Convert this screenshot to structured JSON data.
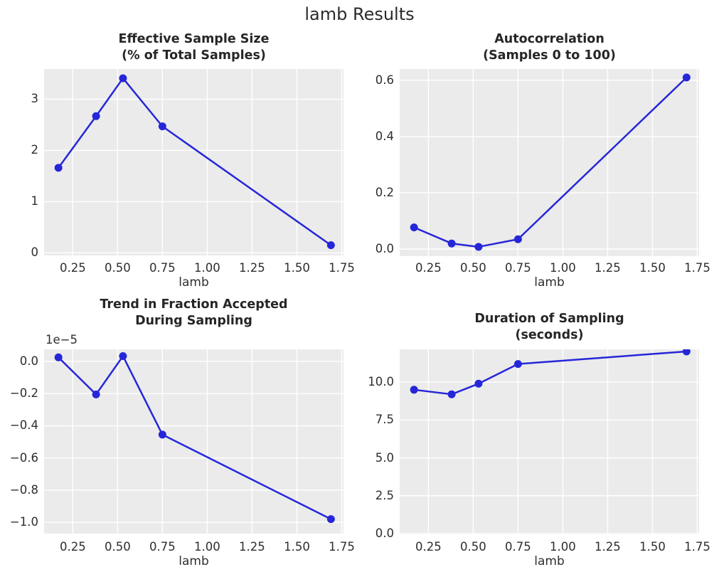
{
  "suptitle": "lamb Results",
  "colors": {
    "line": "#2626d9",
    "marker": "#2626d9",
    "plot_background": "#ebebeb",
    "grid": "#ffffff",
    "tick_text": "#2e2e2e",
    "title_text": "#262626"
  },
  "chart_data": [
    {
      "id": "ess",
      "type": "line",
      "title_lines": [
        "Effective Sample Size",
        "(% of Total Samples)"
      ],
      "xlabel": "lamb",
      "x": [
        0.17,
        0.38,
        0.53,
        0.75,
        1.69
      ],
      "y": [
        1.66,
        2.67,
        3.41,
        2.47,
        0.15
      ],
      "xlim": [
        0.09,
        1.76
      ],
      "ylim": [
        -0.05,
        3.59
      ],
      "xticks": {
        "values": [
          0.25,
          0.5,
          0.75,
          1.0,
          1.25,
          1.5,
          1.75
        ],
        "labels": [
          "0.25",
          "0.50",
          "0.75",
          "1.00",
          "1.25",
          "1.50",
          "1.75"
        ]
      },
      "yticks": {
        "values": [
          0,
          1,
          2,
          3
        ],
        "labels": [
          "0",
          "1",
          "2",
          "3"
        ]
      },
      "grid": true,
      "legend": null
    },
    {
      "id": "autocorrelation",
      "type": "line",
      "title_lines": [
        "Autocorrelation",
        "(Samples 0 to 100)"
      ],
      "xlabel": "lamb",
      "x": [
        0.17,
        0.38,
        0.53,
        0.75,
        1.69
      ],
      "y": [
        0.077,
        0.02,
        0.008,
        0.035,
        0.61
      ],
      "xlim": [
        0.09,
        1.76
      ],
      "ylim": [
        -0.025,
        0.64
      ],
      "xticks": {
        "values": [
          0.25,
          0.5,
          0.75,
          1.0,
          1.25,
          1.5,
          1.75
        ],
        "labels": [
          "0.25",
          "0.50",
          "0.75",
          "1.00",
          "1.25",
          "1.50",
          "1.75"
        ]
      },
      "yticks": {
        "values": [
          0,
          0.2,
          0.4,
          0.6
        ],
        "labels": [
          "0.0",
          "0.2",
          "0.4",
          "0.6"
        ]
      },
      "grid": true,
      "legend": null
    },
    {
      "id": "trend",
      "type": "line",
      "title_lines": [
        "Trend in Fraction Accepted",
        "During Sampling"
      ],
      "xlabel": "lamb",
      "offset_text": "1e−5",
      "y_units_note": "y values shown in units of 1e-5",
      "x": [
        0.17,
        0.38,
        0.53,
        0.75,
        1.69
      ],
      "y": [
        0.025,
        -0.205,
        0.033,
        -0.455,
        -0.98
      ],
      "xlim": [
        0.09,
        1.76
      ],
      "ylim": [
        -1.07,
        0.075
      ],
      "xticks": {
        "values": [
          0.25,
          0.5,
          0.75,
          1.0,
          1.25,
          1.5,
          1.75
        ],
        "labels": [
          "0.25",
          "0.50",
          "0.75",
          "1.00",
          "1.25",
          "1.50",
          "1.75"
        ]
      },
      "yticks": {
        "values": [
          0,
          -0.2,
          -0.4,
          -0.6,
          -0.8,
          -1.0
        ],
        "labels": [
          "0.0",
          "−0.2",
          "−0.4",
          "−0.6",
          "−0.8",
          "−1.0"
        ]
      },
      "grid": true,
      "legend": null
    },
    {
      "id": "duration",
      "type": "line",
      "title_lines": [
        "Duration of Sampling",
        "(seconds)"
      ],
      "xlabel": "lamb",
      "x": [
        0.17,
        0.38,
        0.53,
        0.75,
        1.69
      ],
      "y": [
        9.5,
        9.2,
        9.9,
        11.2,
        12.03
      ],
      "xlim": [
        0.09,
        1.76
      ],
      "ylim": [
        -0.05,
        12.17
      ],
      "xticks": {
        "values": [
          0.25,
          0.5,
          0.75,
          1.0,
          1.25,
          1.5,
          1.75
        ],
        "labels": [
          "0.25",
          "0.50",
          "0.75",
          "1.00",
          "1.25",
          "1.50",
          "1.75"
        ]
      },
      "yticks": {
        "values": [
          0,
          2.5,
          5,
          7.5,
          10
        ],
        "labels": [
          "0.0",
          "2.5",
          "5.0",
          "7.5",
          "10.0"
        ]
      },
      "grid": true,
      "legend": null
    }
  ]
}
